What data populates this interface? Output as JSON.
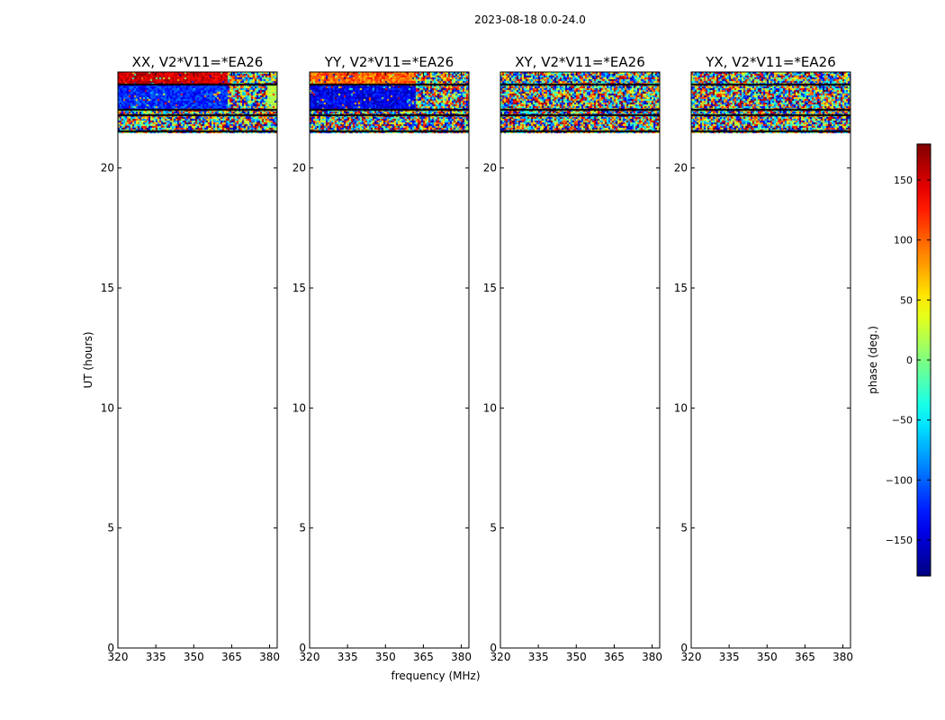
{
  "chart_data": {
    "type": "heatmap",
    "suptitle": "2023-08-18 0.0-24.0",
    "xlabel": "frequency (MHz)",
    "ylabel": "UT (hours)",
    "xlim": [
      320,
      383
    ],
    "ylim": [
      0,
      24
    ],
    "xticks": [
      320,
      335,
      350,
      365,
      380
    ],
    "yticks": [
      0,
      5,
      10,
      15,
      20
    ],
    "data_ut_range": [
      21.5,
      24.0
    ],
    "flagged_ut_rows": [
      23.5,
      22.45,
      22.25,
      21.55
    ],
    "colorbar": {
      "label": "phase (deg.)",
      "range": [
        -180,
        180
      ],
      "ticks": [
        -150,
        -100,
        -50,
        0,
        50,
        100,
        150
      ],
      "tick_labels": [
        "−150",
        "−100",
        "−50",
        "0",
        "50",
        "100",
        "150"
      ],
      "colormap": "jet"
    },
    "panels": [
      {
        "title": "XX, V2*V11=*EA26",
        "bands": [
          {
            "ut": [
              23.5,
              24.0
            ],
            "f": [
              320,
              363
            ],
            "phase": 150,
            "noise": 25
          },
          {
            "ut": [
              23.5,
              24.0
            ],
            "f": [
              363,
              383
            ],
            "phase": null
          },
          {
            "ut": [
              22.45,
              23.5
            ],
            "f": [
              320,
              363
            ],
            "phase": -120,
            "noise": 30
          },
          {
            "ut": [
              22.45,
              23.5
            ],
            "f": [
              363,
              379
            ],
            "phase": null
          },
          {
            "ut": [
              22.45,
              23.5
            ],
            "f": [
              379,
              383
            ],
            "phase": 20,
            "noise": 15
          },
          {
            "ut": [
              21.55,
              22.25
            ],
            "f": [
              320,
              383
            ],
            "phase": null
          }
        ]
      },
      {
        "title": "YY, V2*V11=*EA26",
        "bands": [
          {
            "ut": [
              23.5,
              24.0
            ],
            "f": [
              320,
              362
            ],
            "phase": 100,
            "noise": 35
          },
          {
            "ut": [
              23.5,
              24.0
            ],
            "f": [
              362,
              383
            ],
            "phase": null
          },
          {
            "ut": [
              22.45,
              23.5
            ],
            "f": [
              320,
              362
            ],
            "phase": -140,
            "noise": 30
          },
          {
            "ut": [
              22.45,
              23.5
            ],
            "f": [
              362,
              383
            ],
            "phase": null
          },
          {
            "ut": [
              21.55,
              22.25
            ],
            "f": [
              320,
              383
            ],
            "phase": null
          }
        ]
      },
      {
        "title": "XY, V2*V11=*EA26",
        "bands": [
          {
            "ut": [
              23.5,
              24.0
            ],
            "f": [
              320,
              383
            ],
            "phase": null
          },
          {
            "ut": [
              22.45,
              23.5
            ],
            "f": [
              320,
              383
            ],
            "phase": null
          },
          {
            "ut": [
              21.55,
              22.25
            ],
            "f": [
              320,
              383
            ],
            "phase": null
          }
        ]
      },
      {
        "title": "YX, V2*V11=*EA26",
        "bands": [
          {
            "ut": [
              23.5,
              24.0
            ],
            "f": [
              320,
              383
            ],
            "phase": null
          },
          {
            "ut": [
              22.45,
              23.5
            ],
            "f": [
              320,
              383
            ],
            "phase": null
          },
          {
            "ut": [
              21.55,
              22.25
            ],
            "f": [
              320,
              383
            ],
            "phase": null
          }
        ]
      }
    ]
  }
}
